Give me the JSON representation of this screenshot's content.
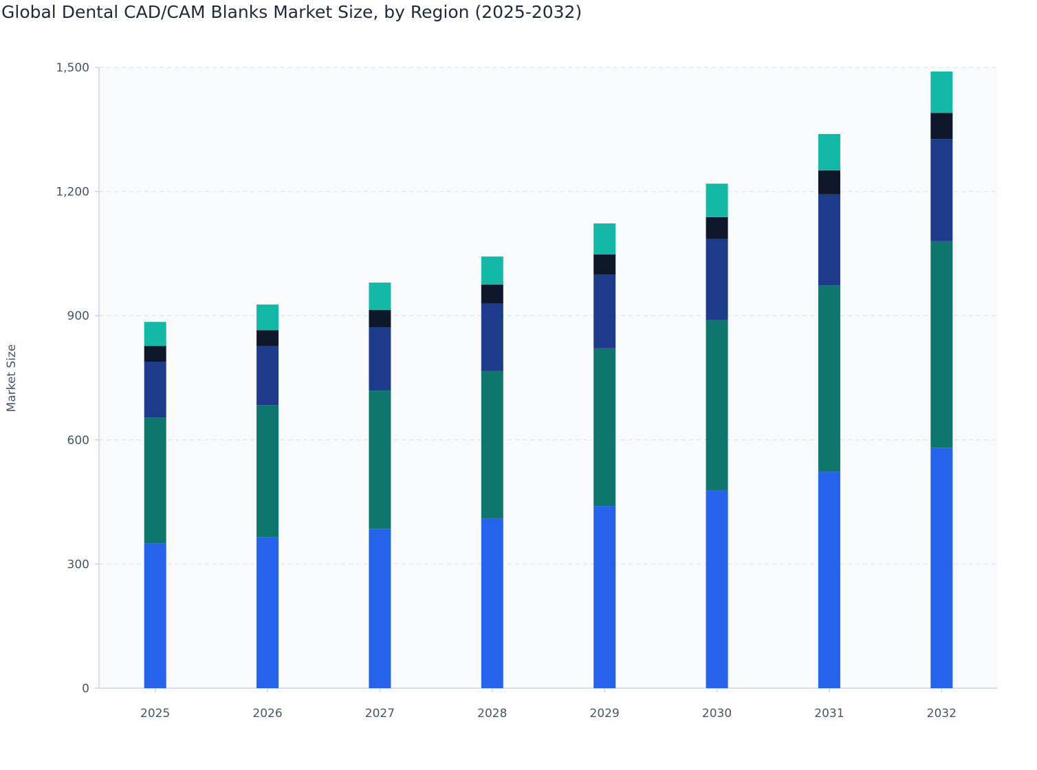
{
  "chart_data": {
    "type": "bar",
    "stacked": true,
    "title": "Global Dental CAD/CAM Blanks Market Size, by Region (2025-2032)",
    "xlabel": "",
    "ylabel": "Market Size",
    "ylim": [
      0,
      1500
    ],
    "yticks": [
      "0",
      "300",
      "600",
      "900",
      "1,200",
      "1,500"
    ],
    "ytick_values": [
      0,
      300,
      600,
      900,
      1200,
      1500
    ],
    "grid": true,
    "legend": "none",
    "categories": [
      "2025",
      "2026",
      "2027",
      "2028",
      "2029",
      "2030",
      "2031",
      "2032"
    ],
    "series": [
      {
        "color": "#2563eb",
        "values": [
          350,
          365,
          385,
          410,
          440,
          477,
          523,
          581
        ]
      },
      {
        "color": "#0f766e",
        "values": [
          304,
          319,
          334,
          356,
          381,
          412,
          450,
          499
        ]
      },
      {
        "color": "#1e3a8a",
        "values": [
          135,
          142,
          153,
          163,
          179,
          196,
          220,
          247
        ]
      },
      {
        "color": "#0f172a",
        "values": [
          38,
          39,
          42,
          46,
          48,
          53,
          58,
          63
        ]
      },
      {
        "color": "#14b8a6",
        "values": [
          58,
          62,
          66,
          68,
          75,
          81,
          88,
          100
        ]
      }
    ]
  }
}
